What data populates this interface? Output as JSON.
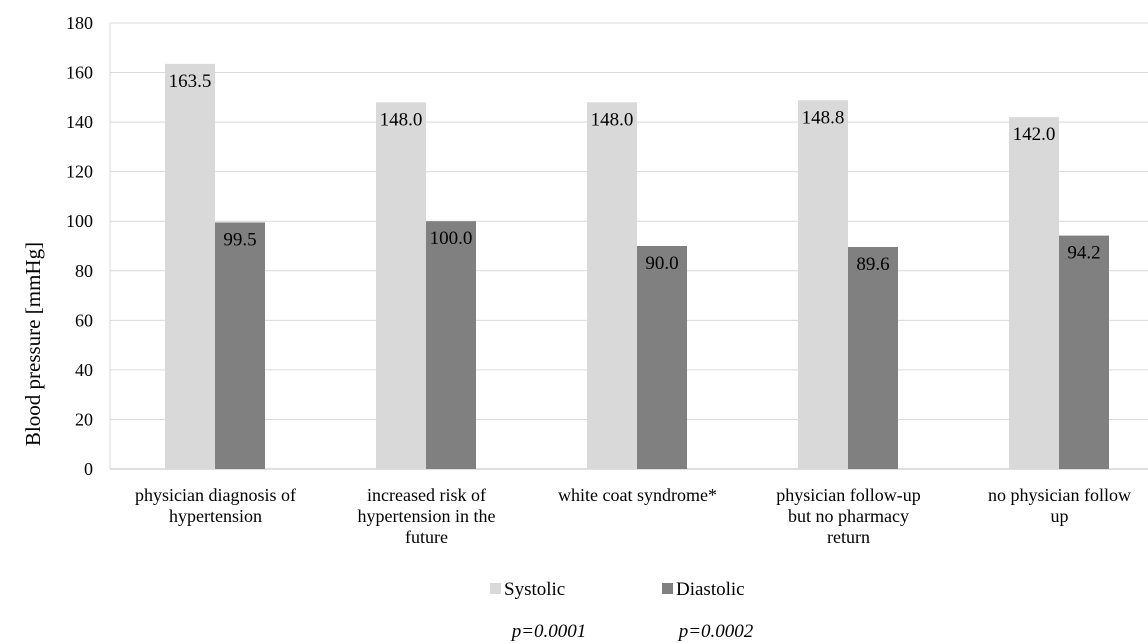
{
  "chart_data": {
    "type": "bar",
    "categories": [
      [
        "physician diagnosis of",
        "hypertension"
      ],
      [
        "increased risk of",
        "hypertension in the",
        "future"
      ],
      [
        "white coat syndrome*"
      ],
      [
        "physician follow-up",
        "but no pharmacy",
        "return"
      ],
      [
        "no physician follow",
        "up"
      ]
    ],
    "series": [
      {
        "name": "Systolic",
        "values": [
          163.5,
          148.0,
          148.0,
          148.8,
          142.0
        ],
        "labels": [
          "163.5",
          "148.0",
          "148.0",
          "148.8",
          "142.0"
        ],
        "color": "#d9d9d9"
      },
      {
        "name": "Diastolic",
        "values": [
          99.5,
          100.0,
          90.0,
          89.6,
          94.2
        ],
        "labels": [
          "99.5",
          "100.0",
          "90.0",
          "89.6",
          "94.2"
        ],
        "color": "#808080"
      }
    ],
    "ylabel": "Blood pressure [mmHg]",
    "xlabel": "",
    "ylim": [
      0,
      180
    ],
    "yticks": [
      0,
      20,
      40,
      60,
      80,
      100,
      120,
      140,
      160,
      180
    ],
    "grid": true,
    "legend_position": "bottom",
    "annotations": [
      "p=0.0001",
      "p=0.0002"
    ]
  }
}
